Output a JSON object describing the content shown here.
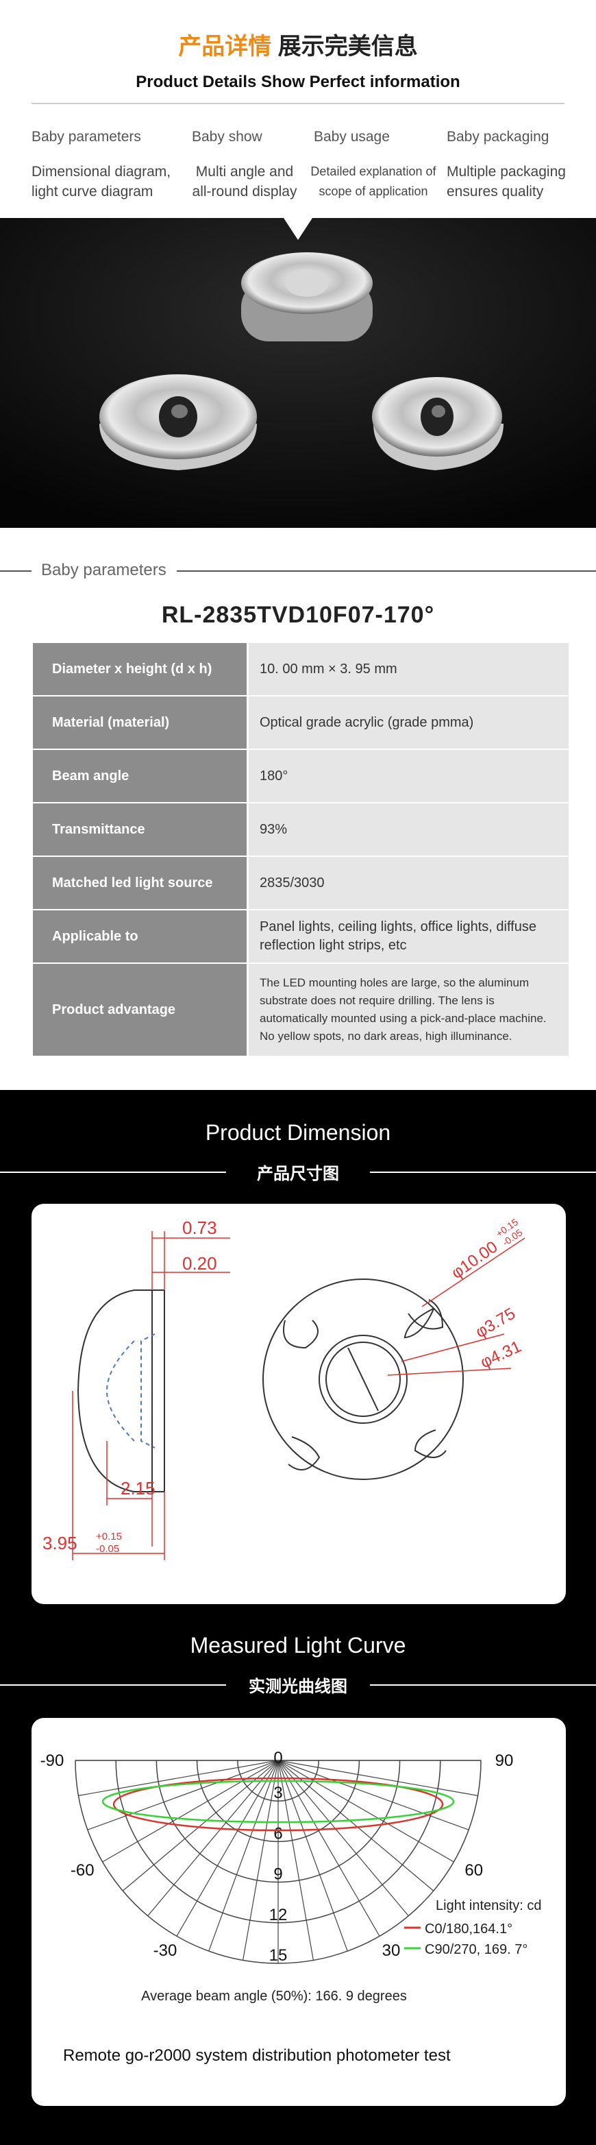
{
  "header": {
    "title_highlight": "产品详情",
    "title_rest": "展示完美信息",
    "subtitle": "Product Details Show Perfect information"
  },
  "tabs": [
    {
      "title": "Baby parameters",
      "description": "Dimensional diagram, light curve diagram"
    },
    {
      "title": "Baby show",
      "description": "Multi angle and all-round display"
    },
    {
      "title": "Baby usage",
      "description": "Detailed explanation of scope of application"
    },
    {
      "title": "Baby packaging",
      "description": "Multiple packaging ensures quality"
    }
  ],
  "parameters": {
    "section_label": "Baby parameters",
    "model": "RL-2835TVD10F07-170°",
    "rows": [
      {
        "label": "Diameter x height (d x h)",
        "value": "10. 00 mm × 3. 95 mm"
      },
      {
        "label": "Material (material)",
        "value": "Optical grade acrylic (grade pmma)"
      },
      {
        "label": "Beam angle",
        "value": "180°"
      },
      {
        "label": "Transmittance",
        "value": "93%"
      },
      {
        "label": "Matched led light source",
        "value": "2835/3030"
      },
      {
        "label": "Applicable to",
        "value": "Panel lights, ceiling lights, office lights, diffuse reflection light strips, etc"
      },
      {
        "label": "Product advantage",
        "value": "The LED mounting holes are large, so the aluminum substrate does not require drilling. The lens is automatically mounted using a pick-and-place machine. No yellow spots, no dark areas, high illuminance."
      }
    ]
  },
  "dimension": {
    "title": "Product Dimension",
    "subtitle": "产品尺寸图",
    "top_width": "0.73",
    "gap": "0.20",
    "inner_height": "2.15",
    "height": "3.95",
    "height_tol_upper": "+0.15",
    "height_tol_lower": "-0.05",
    "diameter": "φ10.00",
    "diameter_tol_upper": "+0.15",
    "diameter_tol_lower": "-0.05",
    "inner_diameter": "φ3.75",
    "hole_diameter": "φ4.31"
  },
  "light_curve": {
    "title": "Measured Light Curve",
    "subtitle": "实测光曲线图",
    "angle_labels": [
      "-90",
      "0",
      "90",
      "-60",
      "60",
      "-30",
      "30"
    ],
    "intensity_labels": [
      "3",
      "6",
      "9",
      "12",
      "15"
    ],
    "legend_title": "Light intensity: cd",
    "series": [
      {
        "name": "C0/180,164.1°",
        "color": "#d9362e"
      },
      {
        "name": "C90/270, 169. 7°",
        "color": "#35d335"
      }
    ],
    "note": "Average beam angle (50%): 166. 9 degrees",
    "footer": "Remote go-r2000 system distribution photometer test"
  }
}
